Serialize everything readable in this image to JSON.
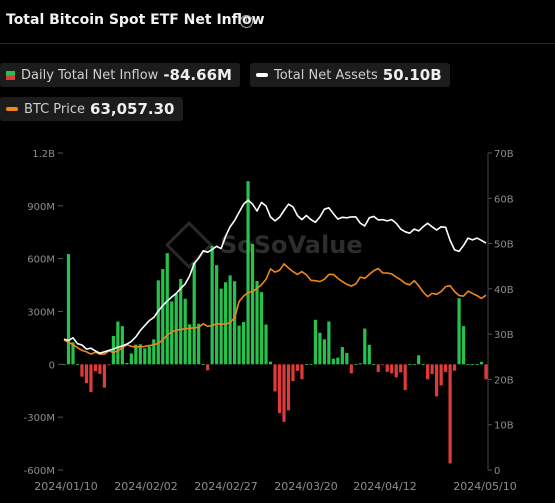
{
  "header": {
    "title": "Total Bitcoin Spot ETF Net Inflow",
    "info_icon": "i"
  },
  "legend": {
    "inflow": {
      "label": "Daily Total Net Inflow",
      "value": "-84.66M"
    },
    "assets": {
      "label": "Total Net Assets",
      "value": "50.10B"
    },
    "btc": {
      "label": "BTC Price",
      "value": "63,057.30"
    }
  },
  "watermark": "SoSoValue",
  "colors": {
    "positive": "#27c24c",
    "negative": "#e03b3b",
    "net_assets": "#ffffff",
    "btc_price": "#f0861d",
    "background": "#000000"
  },
  "chart_data": {
    "type": "bar",
    "title": "Total Bitcoin Spot ETF Net Inflow",
    "grid": false,
    "x_tick_labels": [
      "2024/01/10",
      "2024/02/02",
      "2024/02/27",
      "2024/03/20",
      "2024/04/12",
      "2024/05/10"
    ],
    "y_left": {
      "ticks": [
        "1.2B",
        "900M",
        "600M",
        "300M",
        "0",
        "-300M",
        "-600M"
      ],
      "range": [
        -600,
        1200
      ],
      "unit": "M"
    },
    "y_right": {
      "ticks": [
        "70B",
        "60B",
        "50B",
        "40B",
        "30B",
        "20B",
        "10B",
        "0"
      ],
      "range": [
        0,
        70
      ],
      "unit": "B"
    },
    "series": [
      {
        "name": "Daily Total Net Inflow",
        "values": [
          0,
          626,
          125,
          1,
          -70,
          -106,
          -158,
          -39,
          -54,
          -132,
          -4,
          161,
          243,
          217,
          8,
          62,
          112,
          114,
          91,
          102,
          142,
          477,
          541,
          631,
          357,
          401,
          485,
          372,
          227,
          577,
          231,
          1,
          -34,
          673,
          563,
          430,
          466,
          505,
          472,
          220,
          240,
          1040,
          684,
          473,
          410,
          226,
          15,
          -154,
          -277,
          -326,
          -261,
          -95,
          -37,
          -84,
          1,
          1,
          253,
          179,
          142,
          243,
          32,
          38,
          98,
          64,
          -51,
          1,
          6,
          203,
          111,
          1,
          -43,
          -3,
          -43,
          -51,
          -74,
          -46,
          -146,
          1,
          1,
          51,
          1,
          -85,
          -55,
          -182,
          -120,
          -43,
          -563,
          -36,
          375,
          217,
          1,
          1,
          1,
          14,
          -85
        ]
      },
      {
        "name": "Total Net Assets",
        "values": [
          28.9,
          28.6,
          29.2,
          27.9,
          27.6,
          26.7,
          26.9,
          26.3,
          25.8,
          26.1,
          26.4,
          26.7,
          27.1,
          27.4,
          27.8,
          28.4,
          29.4,
          30.8,
          31.9,
          33.0,
          33.7,
          35.1,
          36.3,
          37.3,
          38.2,
          39.0,
          40.1,
          41.1,
          42.9,
          45.6,
          46.8,
          48.4,
          48.1,
          48.7,
          49.4,
          48.9,
          51.6,
          53.7,
          55.1,
          56.9,
          58.7,
          59.6,
          58.7,
          57.2,
          59.1,
          58.3,
          55.9,
          55.0,
          55.8,
          57.3,
          58.7,
          58.1,
          56.2,
          55.3,
          56.2,
          55.3,
          54.7,
          55.9,
          57.6,
          57.9,
          56.6,
          55.4,
          55.8,
          55.7,
          55.9,
          55.9,
          54.5,
          53.9,
          55.7,
          56.0,
          55.2,
          55.3,
          55.0,
          55.3,
          54.5,
          53.2,
          52.6,
          52.3,
          53.2,
          52.8,
          53.7,
          54.5,
          53.7,
          53.0,
          53.7,
          53.6,
          50.7,
          48.6,
          48.3,
          49.6,
          51.2,
          50.8,
          51.2,
          50.7,
          50.1
        ]
      },
      {
        "name": "BTC Price",
        "values": [
          28.7,
          28.2,
          27.7,
          27.0,
          26.4,
          26.1,
          25.6,
          26.0,
          25.6,
          25.6,
          26.3,
          26.0,
          26.3,
          27.0,
          27.7,
          27.3,
          27.2,
          27.2,
          27.3,
          27.5,
          27.6,
          28.0,
          28.7,
          29.8,
          30.5,
          30.9,
          31.0,
          31.2,
          31.3,
          31.4,
          31.5,
          32.3,
          31.7,
          31.9,
          32.3,
          32.2,
          32.2,
          32.6,
          33.6,
          37.2,
          38.4,
          39.2,
          39.4,
          40.1,
          40.9,
          42.1,
          44.4,
          43.7,
          44.1,
          45.5,
          44.6,
          43.8,
          43.2,
          43.8,
          43.1,
          41.9,
          41.8,
          41.6,
          42.1,
          43.2,
          43.2,
          42.3,
          41.6,
          41.0,
          40.6,
          41.1,
          42.6,
          42.3,
          43.2,
          44.0,
          44.5,
          43.5,
          43.5,
          43.3,
          42.6,
          42.0,
          41.2,
          40.9,
          41.8,
          40.7,
          39.3,
          38.3,
          39.0,
          38.8,
          39.4,
          40.5,
          40.7,
          39.4,
          38.5,
          38.4,
          39.5,
          39.0,
          38.5,
          37.9,
          38.6
        ]
      }
    ]
  }
}
